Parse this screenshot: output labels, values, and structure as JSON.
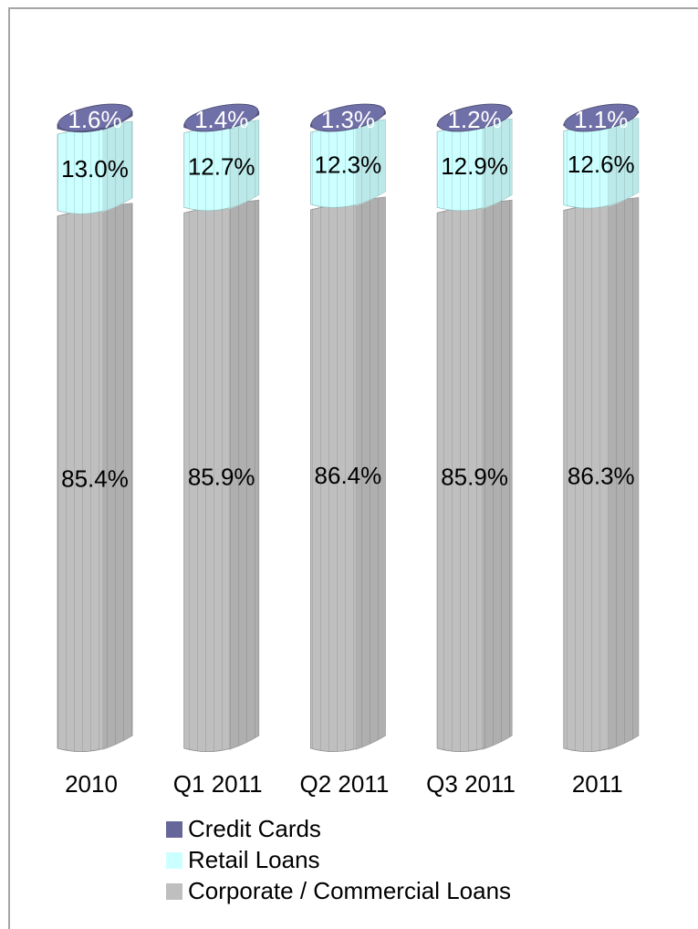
{
  "chart_data": {
    "type": "bar",
    "stacked": true,
    "percent": true,
    "categories": [
      "2010",
      "Q1 2011",
      "Q2 2011",
      "Q3 2011",
      "2011"
    ],
    "series": [
      {
        "name": "Corporate / Commercial Loans",
        "color": "#bfbfbf",
        "values": [
          85.4,
          85.9,
          86.4,
          85.9,
          86.3
        ],
        "labels": [
          "85.4%",
          "85.9%",
          "86.4%",
          "85.9%",
          "86.3%"
        ]
      },
      {
        "name": "Retail Loans",
        "color": "#ccffff",
        "values": [
          13.0,
          12.7,
          12.3,
          12.9,
          12.6
        ],
        "labels": [
          "13.0%",
          "12.7%",
          "12.3%",
          "12.9%",
          "12.6%"
        ]
      },
      {
        "name": "Credit Cards",
        "color": "#666699",
        "values": [
          1.6,
          1.4,
          1.3,
          1.2,
          1.1
        ],
        "labels": [
          "1.6%",
          "1.4%",
          "1.3%",
          "1.2%",
          "1.1%"
        ]
      }
    ],
    "legend": {
      "position": "bottom",
      "order": [
        "Credit Cards",
        "Retail Loans",
        "Corporate / Commercial Loans"
      ]
    },
    "ylim": [
      0,
      100
    ],
    "grid": false,
    "title": "",
    "xlabel": "",
    "ylabel": ""
  }
}
